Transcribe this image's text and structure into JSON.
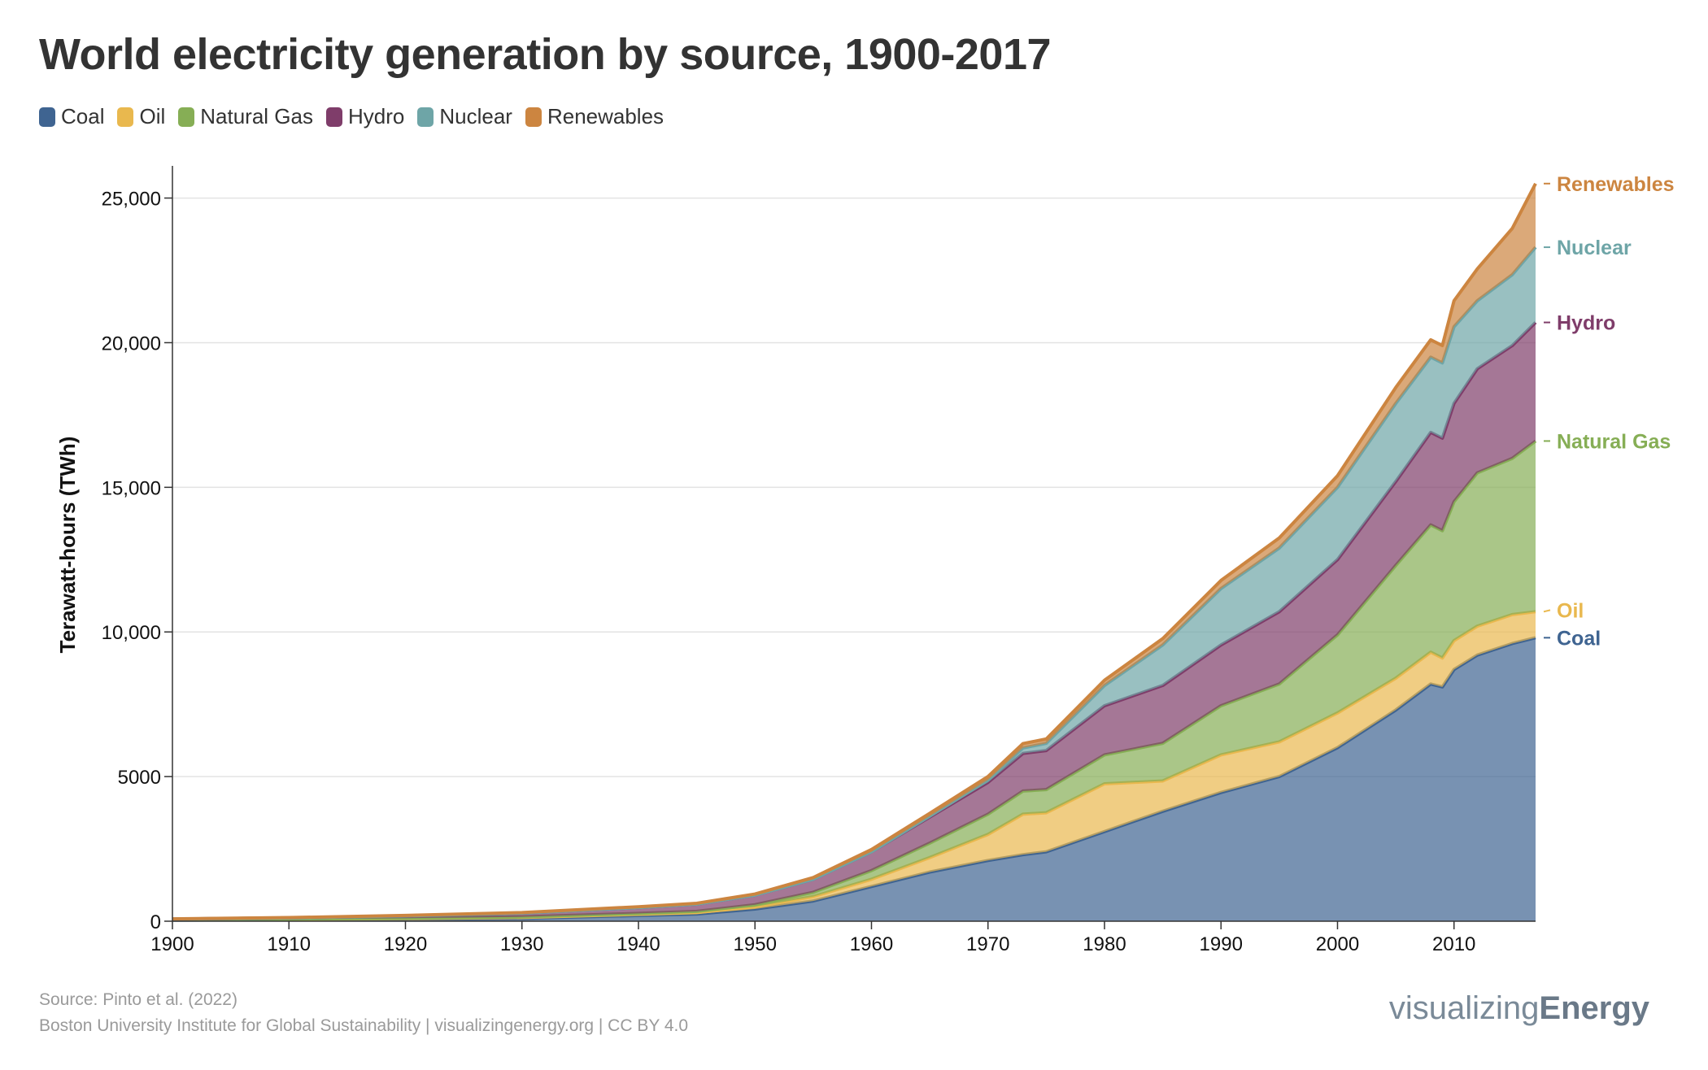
{
  "title": "World electricity generation by source, 1900-2017",
  "footer": {
    "source": "Source: Pinto et al. (2022)",
    "org": "Boston University Institute for Global Sustainability | visualizingenergy.org | CC BY 4.0"
  },
  "brand": {
    "light": "visualizing",
    "bold": "Energy"
  },
  "legend": [
    {
      "label": "Coal",
      "color": "#3f6491"
    },
    {
      "label": "Oil",
      "color": "#e9b84e"
    },
    {
      "label": "Natural Gas",
      "color": "#86ae55"
    },
    {
      "label": "Hydro",
      "color": "#7f3d6a"
    },
    {
      "label": "Nuclear",
      "color": "#6ea5a7"
    },
    {
      "label": "Renewables",
      "color": "#cc8540"
    }
  ],
  "chart_data": {
    "type": "area",
    "stacked": true,
    "title": "World electricity generation by source, 1900-2017",
    "ylabel": "Terawatt-hours (TWh)",
    "xlabel": "",
    "xlim": [
      1900,
      2017
    ],
    "ylim": [
      0,
      26000
    ],
    "grid": true,
    "legend_position": "top-left",
    "x_ticks": [
      1900,
      1910,
      1920,
      1930,
      1940,
      1950,
      1960,
      1970,
      1980,
      1990,
      2000,
      2010
    ],
    "y_ticks": [
      {
        "value": 0,
        "label": "0"
      },
      {
        "value": 5000,
        "label": "5000"
      },
      {
        "value": 10000,
        "label": "10,000"
      },
      {
        "value": 15000,
        "label": "15,000"
      },
      {
        "value": 20000,
        "label": "20,000"
      },
      {
        "value": 25000,
        "label": "25,000"
      }
    ],
    "x": [
      1900,
      1910,
      1920,
      1930,
      1940,
      1945,
      1950,
      1955,
      1960,
      1965,
      1970,
      1973,
      1975,
      1980,
      1985,
      1990,
      1995,
      2000,
      2005,
      2008,
      2009,
      2010,
      2012,
      2015,
      2017
    ],
    "series": [
      {
        "name": "Coal",
        "color": "#3f6491",
        "end_label": "Coal",
        "values": [
          40,
          50,
          70,
          100,
          200,
          250,
          420,
          700,
          1200,
          1700,
          2100,
          2300,
          2400,
          3100,
          3800,
          4450,
          5000,
          6000,
          7300,
          8200,
          8100,
          8700,
          9200,
          9600,
          9800
        ]
      },
      {
        "name": "Oil",
        "color": "#e9b84e",
        "end_label": "Oil",
        "values": [
          10,
          15,
          20,
          30,
          40,
          50,
          80,
          150,
          250,
          500,
          900,
          1400,
          1350,
          1650,
          1050,
          1300,
          1200,
          1200,
          1100,
          1100,
          1000,
          1000,
          1000,
          1000,
          900
        ]
      },
      {
        "name": "Natural Gas",
        "color": "#86ae55",
        "end_label": "Natural Gas",
        "values": [
          5,
          10,
          15,
          20,
          30,
          40,
          70,
          150,
          300,
          500,
          700,
          800,
          800,
          1000,
          1300,
          1700,
          2000,
          2700,
          3900,
          4400,
          4400,
          4800,
          5300,
          5400,
          5900
        ]
      },
      {
        "name": "Hydro",
        "color": "#7f3d6a",
        "end_label": "Hydro",
        "values": [
          20,
          40,
          80,
          130,
          200,
          250,
          330,
          450,
          650,
          900,
          1100,
          1300,
          1350,
          1700,
          2000,
          2100,
          2500,
          2600,
          2900,
          3200,
          3200,
          3400,
          3600,
          3900,
          4100
        ]
      },
      {
        "name": "Nuclear",
        "color": "#6ea5a7",
        "end_label": "Nuclear",
        "values": [
          0,
          0,
          0,
          0,
          0,
          0,
          0,
          0,
          0,
          30,
          80,
          190,
          250,
          700,
          1400,
          1950,
          2200,
          2500,
          2700,
          2600,
          2600,
          2650,
          2350,
          2450,
          2600
        ]
      },
      {
        "name": "Renewables",
        "color": "#cc8540",
        "end_label": "Renewables",
        "values": [
          5,
          10,
          15,
          20,
          30,
          30,
          40,
          60,
          80,
          100,
          120,
          150,
          150,
          180,
          220,
          280,
          350,
          400,
          550,
          600,
          600,
          900,
          1100,
          1600,
          2200
        ]
      }
    ]
  }
}
